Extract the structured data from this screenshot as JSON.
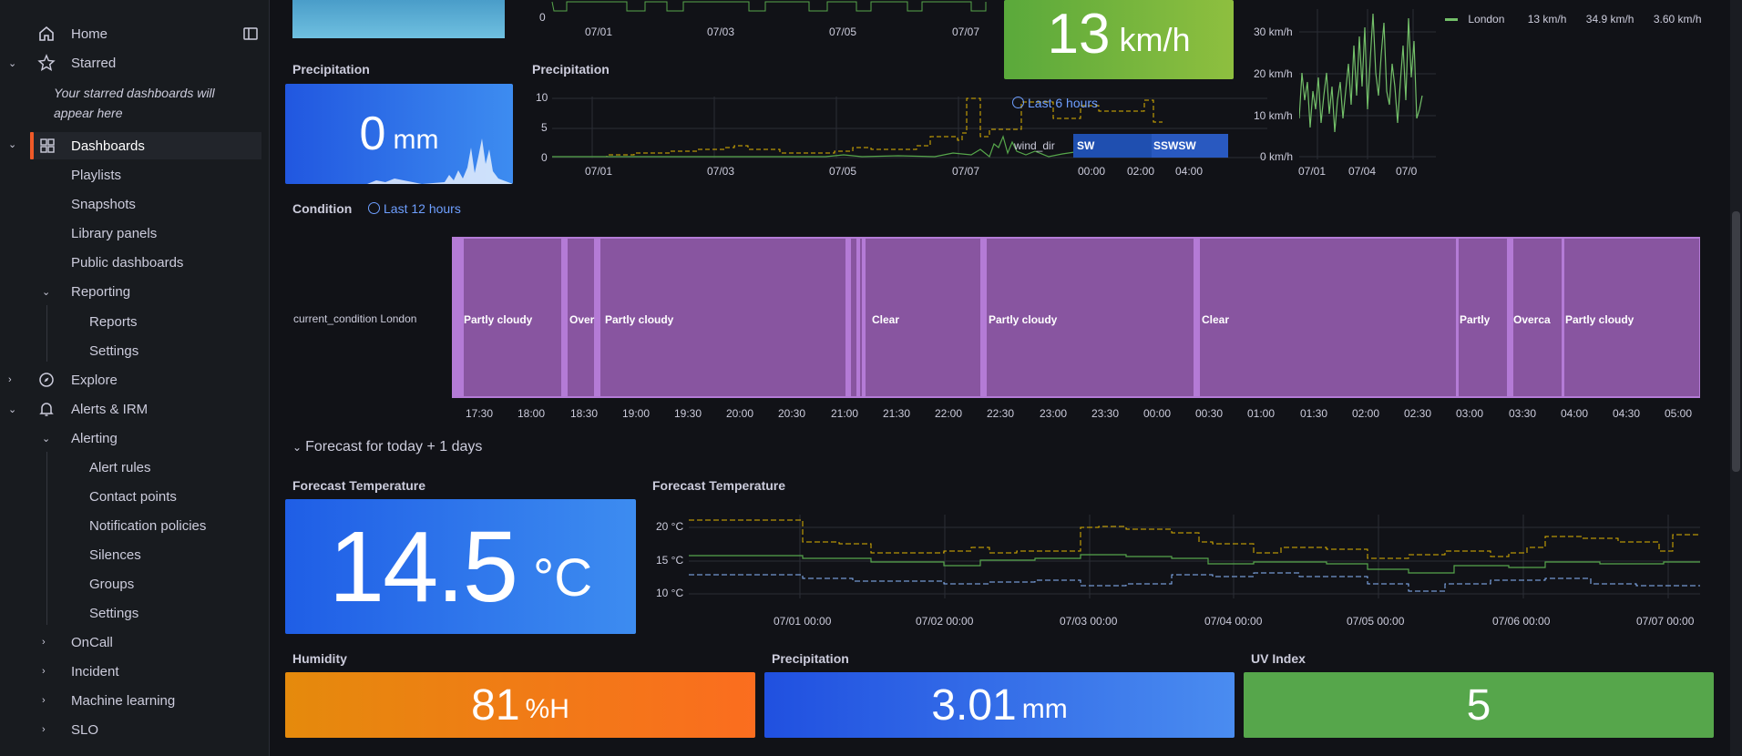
{
  "sidebar": {
    "home": "Home",
    "starred": "Starred",
    "starred_empty_1": "Your starred dashboards will",
    "starred_empty_2": "appear here",
    "dashboards": "Dashboards",
    "playlists": "Playlists",
    "snapshots": "Snapshots",
    "library_panels": "Library panels",
    "public_dashboards": "Public dashboards",
    "reporting": "Reporting",
    "reports": "Reports",
    "reporting_settings": "Settings",
    "explore": "Explore",
    "alerts_irm": "Alerts & IRM",
    "alerting": "Alerting",
    "alert_rules": "Alert rules",
    "contact_points": "Contact points",
    "notification_policies": "Notification policies",
    "silences": "Silences",
    "groups": "Groups",
    "alerting_settings": "Settings",
    "oncall": "OnCall",
    "incident": "Incident",
    "machine_learning": "Machine learning",
    "slo": "SLO",
    "accent_color": "#f05a28"
  },
  "panels": {
    "precip_stat": {
      "title": "Precipitation",
      "value": "0",
      "unit": "mm"
    },
    "precip_chart": {
      "title": "Precipitation",
      "yticks": [
        "10",
        "5",
        "0"
      ],
      "xticks": [
        "07/01",
        "07/03",
        "07/05",
        "07/07"
      ]
    },
    "top_chart_xticks": [
      "07/01",
      "07/03",
      "07/05",
      "07/07"
    ],
    "top_chart_y0": "0",
    "wind_stat": {
      "value": "13",
      "unit": "km/h"
    },
    "wind_time_link": "Last 6 hours",
    "wind_dir": {
      "label": "wind_dir",
      "segments": [
        "SW",
        "SSWSW"
      ],
      "xticks": [
        "00:00",
        "02:00",
        "04:00"
      ]
    },
    "wind_chart": {
      "yticks": [
        "30 km/h",
        "20 km/h",
        "10 km/h",
        "0 km/h"
      ],
      "xticks": [
        "07/01",
        "07/04",
        "07/0"
      ],
      "legend": {
        "name": "London",
        "v1": "13 km/h",
        "v2": "34.9 km/h",
        "v3": "3.60 km/h"
      }
    },
    "condition": {
      "title": "Condition",
      "time_link": "Last 12 hours",
      "row_label": "current_condition London",
      "segments": [
        "Partly cloudy",
        "Over",
        "Partly cloudy",
        "Clear",
        "Partly cloudy",
        "Clear",
        "Partly",
        "Overca",
        "Partly cloudy"
      ],
      "xticks": [
        "17:30",
        "18:00",
        "18:30",
        "19:00",
        "19:30",
        "20:00",
        "20:30",
        "21:00",
        "21:30",
        "22:00",
        "22:30",
        "23:00",
        "23:30",
        "00:00",
        "00:30",
        "01:00",
        "01:30",
        "02:00",
        "02:30",
        "03:00",
        "03:30",
        "04:00",
        "04:30",
        "05:00"
      ],
      "color": "#8855a0"
    },
    "forecast_row": {
      "title": "Forecast for today + 1 days"
    },
    "forecast_temp_stat": {
      "title": "Forecast Temperature",
      "value": "14.5",
      "unit": "°C"
    },
    "forecast_temp_chart": {
      "title": "Forecast Temperature",
      "yticks": [
        "20 °C",
        "15 °C",
        "10 °C"
      ],
      "xticks": [
        "07/01 00:00",
        "07/02 00:00",
        "07/03 00:00",
        "07/04 00:00",
        "07/05 00:00",
        "07/06 00:00",
        "07/07 00:00"
      ]
    },
    "humidity": {
      "title": "Humidity",
      "value": "81",
      "unit": "%H",
      "color": "#f5730f"
    },
    "precip_bottom": {
      "title": "Precipitation",
      "value": "3.01",
      "unit": "mm",
      "color": "#3d71e0"
    },
    "uv": {
      "title": "UV Index",
      "value": "5",
      "color": "#56a64b"
    }
  }
}
